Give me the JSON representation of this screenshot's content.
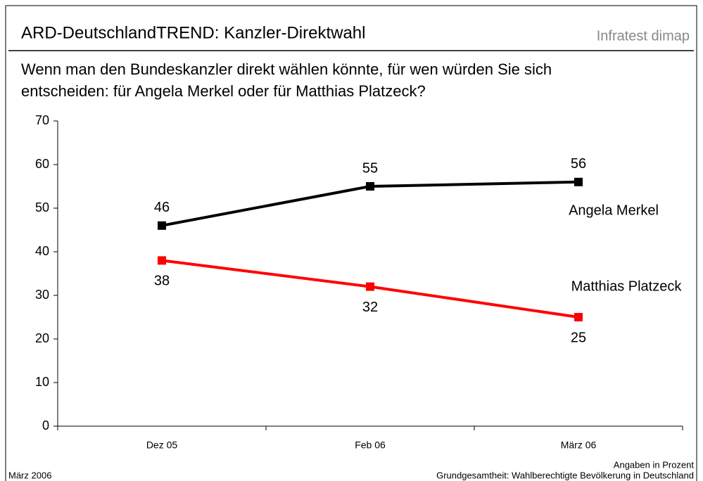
{
  "chart_data": {
    "type": "line",
    "title": "ARD-DeutschlandTREND: Kanzler-Direktwahl",
    "brand": "Infratest dimap",
    "subtitle": [
      "Wenn man den Bundeskanzler direkt wählen könnte, für wen würden Sie sich",
      "entscheiden: für Angela Merkel oder für Matthias Platzeck?"
    ],
    "categories": [
      "Dez 05",
      "Feb 06",
      "März 06"
    ],
    "series": [
      {
        "name": "Angela Merkel",
        "color": "#000000",
        "values": [
          46,
          55,
          56
        ]
      },
      {
        "name": "Matthias Platzeck",
        "color": "#ff0000",
        "values": [
          38,
          32,
          25
        ]
      }
    ],
    "ylim": [
      0,
      70
    ],
    "yticks": [
      0,
      10,
      20,
      30,
      40,
      50,
      60,
      70
    ],
    "date_note": "März 2006",
    "unit_note": "Angaben in Prozent",
    "base_note": "Grundgesamtheit: Wahlberechtigte Bevölkerung in Deutschland"
  }
}
